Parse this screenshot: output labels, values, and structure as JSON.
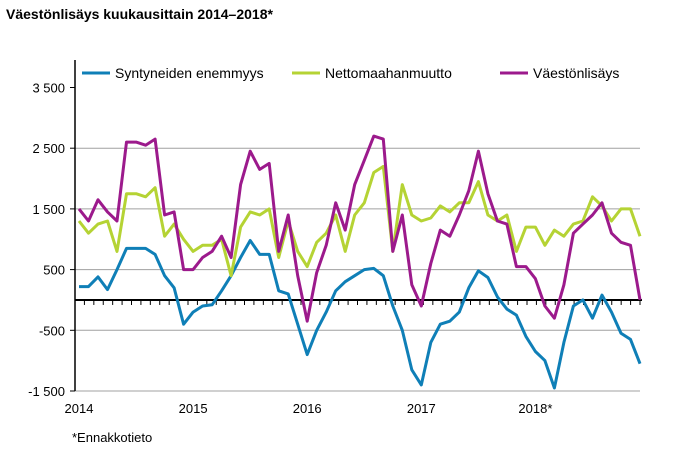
{
  "chart_data": {
    "type": "line",
    "title": "Väestönlisäys kuukausittain 2014–2018*",
    "footnote": "*Ennakkotieto",
    "xlabel": "",
    "ylabel": "",
    "x_tick_labels": [
      "2014",
      "2015",
      "2016",
      "2017",
      "2018*"
    ],
    "y_tick_labels": [
      "-1 500",
      "-500",
      "500",
      "1 500",
      "2 500",
      "3 500"
    ],
    "y_ticks": [
      -1500,
      -500,
      500,
      1500,
      2500,
      3500
    ],
    "ylim": [
      -1500,
      3500
    ],
    "x_unit": "month",
    "x_range": [
      "2014-01",
      "2018-12"
    ],
    "grid": true,
    "legend_placement": "top",
    "series": [
      {
        "name": "Syntyneiden enemmyys",
        "color": "#0f7fb7",
        "values": [
          220,
          220,
          380,
          170,
          500,
          850,
          850,
          850,
          750,
          400,
          200,
          -400,
          -200,
          -100,
          -80,
          150,
          400,
          700,
          980,
          750,
          750,
          150,
          100,
          -400,
          -900,
          -500,
          -200,
          150,
          300,
          400,
          500,
          520,
          400,
          -100,
          -500,
          -1150,
          -1400,
          -700,
          -400,
          -350,
          -200,
          200,
          480,
          370,
          50,
          -150,
          -250,
          -600,
          -850,
          -1000,
          -1450,
          -700,
          -100,
          0,
          -300,
          80,
          -200,
          -550,
          -650,
          -1050
        ]
      },
      {
        "name": "Nettomaahanmuutto",
        "color": "#b5d334",
        "values": [
          1300,
          1100,
          1250,
          1300,
          800,
          1750,
          1750,
          1700,
          1850,
          1050,
          1250,
          1000,
          800,
          900,
          900,
          1000,
          400,
          1200,
          1450,
          1400,
          1500,
          700,
          1300,
          800,
          550,
          950,
          1100,
          1400,
          800,
          1400,
          1600,
          2100,
          2200,
          800,
          1900,
          1400,
          1300,
          1350,
          1550,
          1450,
          1600,
          1600,
          1950,
          1400,
          1300,
          1400,
          800,
          1200,
          1200,
          900,
          1150,
          1050,
          1250,
          1300,
          1700,
          1550,
          1300,
          1500,
          1500,
          1050
        ]
      },
      {
        "name": "Väestönlisäys",
        "color": "#9c1a8c",
        "values": [
          1500,
          1300,
          1650,
          1450,
          1300,
          2600,
          2600,
          2550,
          2650,
          1400,
          1450,
          500,
          500,
          700,
          800,
          1050,
          700,
          1900,
          2450,
          2150,
          2250,
          800,
          1400,
          400,
          -350,
          450,
          900,
          1600,
          1150,
          1900,
          2300,
          2700,
          2650,
          800,
          1400,
          250,
          -100,
          600,
          1150,
          1050,
          1400,
          1800,
          2450,
          1750,
          1300,
          1250,
          550,
          550,
          350,
          -100,
          -300,
          250,
          1100,
          1250,
          1400,
          1600,
          1100,
          950,
          900,
          0
        ]
      }
    ]
  }
}
